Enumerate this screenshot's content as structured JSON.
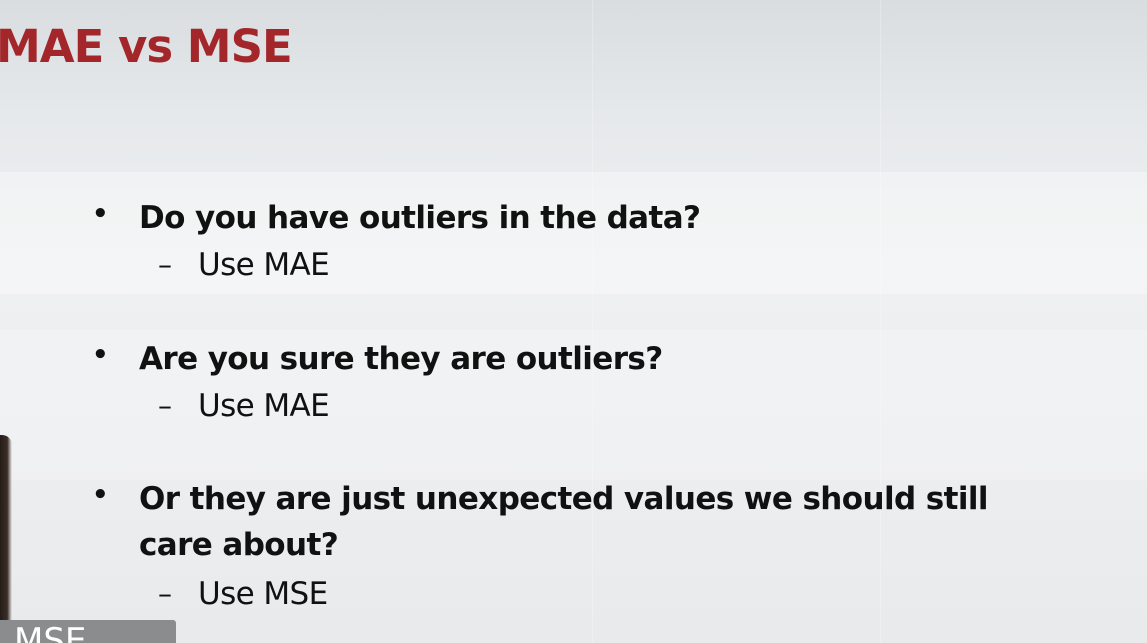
{
  "slide": {
    "title": "MAE vs MSE",
    "title_color": "#a3262a",
    "bullets": [
      {
        "text_lines": [
          "Do you have outliers in the data?"
        ],
        "sub": "Use MAE"
      },
      {
        "text_lines": [
          "Are you sure they are outliers?"
        ],
        "sub": "Use MAE"
      },
      {
        "text_lines": [
          "Or they are just unexpected values we should still",
          "care about?"
        ],
        "sub": "Use MSE"
      }
    ],
    "bullet_glyph": "•",
    "sub_glyph": "–"
  },
  "caption": {
    "text": "MSE",
    "bar_color": "#8a8c8e"
  }
}
